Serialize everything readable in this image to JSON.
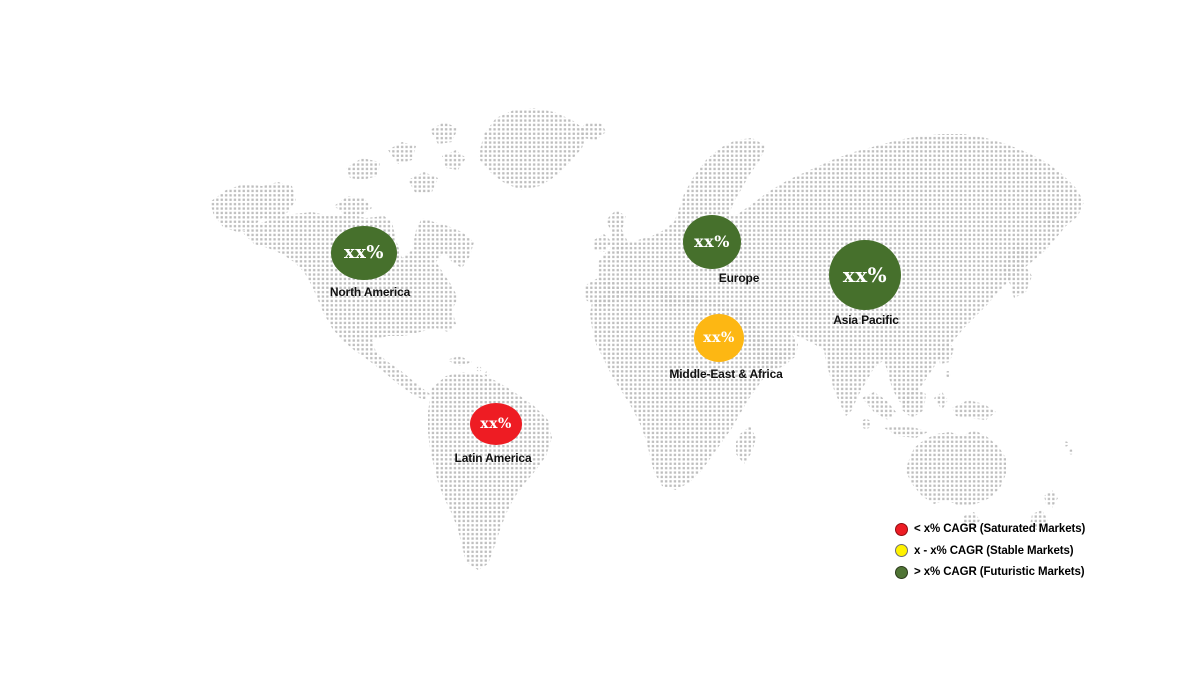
{
  "chart_data": {
    "type": "bubble_map",
    "description": "Dotted world map with regional CAGR bubbles",
    "regions": [
      {
        "id": "north-america",
        "name": "North America",
        "value": "xx%",
        "category": "Futuristic Markets",
        "color": "#46702c"
      },
      {
        "id": "europe",
        "name": "Europe",
        "value": "xx%",
        "category": "Futuristic Markets",
        "color": "#46702c"
      },
      {
        "id": "asia-pacific",
        "name": "Asia Pacific",
        "value": "xx%",
        "category": "Futuristic Markets",
        "color": "#46702c"
      },
      {
        "id": "middle-east-africa",
        "name": "Middle-East & Africa",
        "value": "xx%",
        "category": "Stable Markets",
        "color": "#fdb713"
      },
      {
        "id": "latin-america",
        "name": "Latin America",
        "value": "xx%",
        "category": "Saturated Markets",
        "color": "#ee1c23"
      }
    ],
    "legend": [
      {
        "label": "< x% CAGR (Saturated Markets)",
        "color": "#ed1c24",
        "border": "#8f0e12"
      },
      {
        "label": "x - x% CAGR (Stable Markets)",
        "color": "#fff200",
        "border": "#6d6e71"
      },
      {
        "label": "> x% CAGR (Futuristic Markets)",
        "color": "#4f7434",
        "border": "#2c3a1c"
      }
    ],
    "legend_position": "bottom-right"
  },
  "map": {
    "dot_color": "#bdbdbd",
    "background": "#ffffff"
  }
}
